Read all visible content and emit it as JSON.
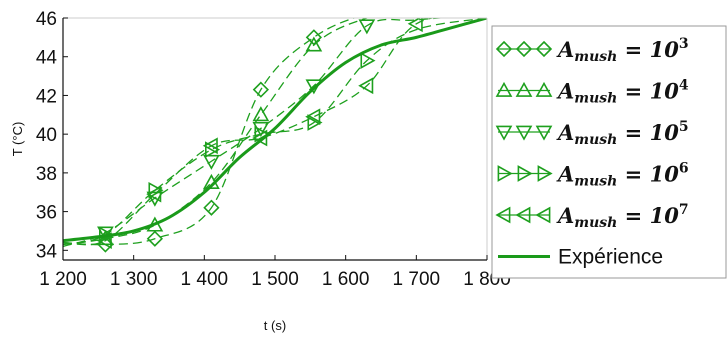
{
  "chart_data": {
    "type": "line",
    "xlabel": "t (s)",
    "ylabel": "T (°C)",
    "xlim": [
      1200,
      1800
    ],
    "ylim": [
      33.5,
      46
    ],
    "x_ticks": [
      1200,
      1300,
      1400,
      1500,
      1600,
      1700,
      1800
    ],
    "x_tick_labels": [
      "1 200",
      "1 300",
      "1 400",
      "1 500",
      "1 600",
      "1 700",
      "1 800"
    ],
    "y_ticks": [
      34,
      36,
      38,
      40,
      42,
      44,
      46
    ],
    "y_tick_labels": [
      "34",
      "36",
      "38",
      "40",
      "42",
      "44",
      "46"
    ],
    "grid": false,
    "legend_position": "right",
    "colors": {
      "series": "#1ea01e",
      "experiment": "#1a9a1a",
      "axis": "#111111"
    },
    "series": [
      {
        "name_base": "A",
        "name_sub": "mush",
        "name_eq": " = ",
        "name_pow_base": "10",
        "name_pow": "3",
        "marker": "diamond",
        "style": "dashed",
        "x": [
          1200,
          1260,
          1330,
          1410,
          1480,
          1555,
          1630,
          1700,
          1800
        ],
        "y": [
          34.4,
          34.3,
          34.6,
          36.2,
          42.3,
          45.0,
          46.2,
          46.5,
          46.6
        ],
        "marker_x": [
          1260,
          1330,
          1410,
          1480,
          1555
        ]
      },
      {
        "name_base": "A",
        "name_sub": "mush",
        "name_eq": " = ",
        "name_pow_base": "10",
        "name_pow": "4",
        "marker": "triangle-up",
        "style": "dashed",
        "x": [
          1200,
          1260,
          1330,
          1410,
          1480,
          1555,
          1630,
          1700,
          1800
        ],
        "y": [
          34.3,
          34.6,
          35.3,
          37.5,
          41.0,
          44.6,
          46.0,
          46.4,
          46.5
        ],
        "marker_x": [
          1260,
          1330,
          1410,
          1480,
          1555
        ]
      },
      {
        "name_base": "A",
        "name_sub": "mush",
        "name_eq": " = ",
        "name_pow_base": "10",
        "name_pow": "5",
        "marker": "triangle-down",
        "style": "dashed",
        "x": [
          1200,
          1260,
          1330,
          1410,
          1480,
          1555,
          1630,
          1700,
          1800
        ],
        "y": [
          34.2,
          34.9,
          36.7,
          38.6,
          40.3,
          42.5,
          45.6,
          45.9,
          46.2
        ],
        "marker_x": [
          1260,
          1330,
          1410,
          1480,
          1555,
          1630
        ]
      },
      {
        "name_base": "A",
        "name_sub": "mush",
        "name_eq": " = ",
        "name_pow_base": "10",
        "name_pow": "6",
        "marker": "triangle-right",
        "style": "dashed",
        "x": [
          1200,
          1260,
          1330,
          1410,
          1480,
          1555,
          1630,
          1700,
          1800
        ],
        "y": [
          34.3,
          34.8,
          37.1,
          39.2,
          40.0,
          40.6,
          43.8,
          45.4,
          46.0
        ],
        "marker_x": [
          1260,
          1330,
          1410,
          1480,
          1555,
          1630
        ]
      },
      {
        "name_base": "A",
        "name_sub": "mush",
        "name_eq": " = ",
        "name_pow_base": "10",
        "name_pow": "7",
        "marker": "triangle-left",
        "style": "dashed",
        "x": [
          1200,
          1260,
          1330,
          1410,
          1480,
          1555,
          1630,
          1700,
          1800
        ],
        "y": [
          34.4,
          34.5,
          36.9,
          39.4,
          39.8,
          40.9,
          42.5,
          45.7,
          46.2
        ],
        "marker_x": [
          1260,
          1330,
          1410,
          1480,
          1555,
          1630,
          1700
        ]
      },
      {
        "name": "Expérience",
        "marker": "none",
        "style": "solid",
        "x": [
          1200,
          1250,
          1300,
          1350,
          1400,
          1450,
          1500,
          1550,
          1600,
          1650,
          1700,
          1750,
          1800
        ],
        "y": [
          34.5,
          34.7,
          35.0,
          35.7,
          37.0,
          38.8,
          40.3,
          42.2,
          43.7,
          44.6,
          45.0,
          45.5,
          46.0
        ]
      }
    ]
  }
}
